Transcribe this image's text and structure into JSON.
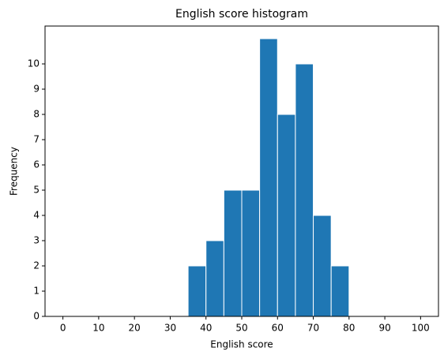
{
  "chart_data": {
    "type": "histogram",
    "title": "English score histogram",
    "x_label": "English score",
    "y_label": "Frequency",
    "bins": [
      35,
      40,
      45,
      50,
      55,
      60,
      65,
      70,
      75,
      80
    ],
    "values": [
      2,
      3,
      5,
      5,
      11,
      8,
      10,
      4,
      2
    ],
    "color": "#1f77b4",
    "edge_color": "#ffffff",
    "xlim": [
      -5,
      105
    ],
    "ylim": [
      0,
      11.5
    ],
    "xticks": [
      0,
      10,
      20,
      30,
      40,
      50,
      60,
      70,
      80,
      90,
      100
    ],
    "yticks": [
      0,
      1,
      2,
      3,
      4,
      5,
      6,
      7,
      8,
      9,
      10
    ]
  }
}
